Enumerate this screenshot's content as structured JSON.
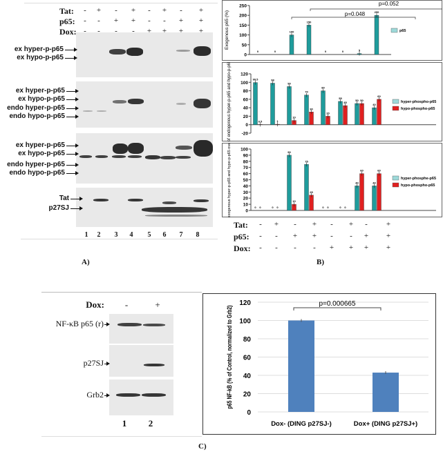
{
  "panel_a": {
    "label": "A)",
    "conditions": [
      {
        "name": "Tat:",
        "signs": [
          "-",
          "+",
          "-",
          "+",
          "-",
          "+",
          "-",
          "+"
        ]
      },
      {
        "name": "p65:",
        "signs": [
          "-",
          "-",
          "+",
          "+",
          "-",
          "-",
          "+",
          "+"
        ]
      },
      {
        "name": "Dox:",
        "signs": [
          "-",
          "-",
          "-",
          "-",
          "+",
          "+",
          "+",
          "+"
        ]
      }
    ],
    "blot1_labels": [
      "ex hyper-p-p65",
      "ex hypo-p-p65"
    ],
    "blot2_labels": [
      "ex hyper-p-p65",
      "ex hypo-p-p65",
      "endo hyper-p-p65",
      "endo hypo-p-p65"
    ],
    "blot3_labels": [
      "ex hyper-p-p65",
      "ex hypo-p-p65",
      "endo hyper-p-p65",
      "endo hypo-p-p65"
    ],
    "blot4_labels": [
      "Tat",
      "p27SJ"
    ],
    "lanes": [
      "1",
      "2",
      "3",
      "4",
      "5",
      "6",
      "7",
      "8"
    ]
  },
  "panel_b": {
    "label": "B)",
    "conditions": [
      {
        "name": "Tat:",
        "signs": [
          "-",
          "+",
          "-",
          "+",
          "-",
          "+",
          "-",
          "+"
        ]
      },
      {
        "name": "p65:",
        "signs": [
          "-",
          "-",
          "+",
          "+",
          "-",
          "-",
          "+",
          "+"
        ]
      },
      {
        "name": "Dox:",
        "signs": [
          "-",
          "-",
          "-",
          "-",
          "+",
          "+",
          "+",
          "+"
        ]
      }
    ]
  },
  "panel_c": {
    "label": "C)",
    "dox_label": "Dox:",
    "dox_signs": [
      "-",
      "+"
    ],
    "blot_labels": [
      "NF-κB p65 (r)",
      "p27SJ",
      "Grb2"
    ],
    "lanes": [
      "1",
      "2"
    ]
  },
  "colors": {
    "teal": "#1f9c9c",
    "red": "#e02020",
    "blue": "#4f81bd"
  },
  "chart_data": [
    {
      "type": "bar",
      "ylabel": "Exogenous p65 (%)",
      "ylim": [
        0,
        250
      ],
      "yticks": [
        "0",
        "50",
        "100",
        "150",
        "200",
        "250"
      ],
      "series": [
        {
          "name": "p65",
          "values": [
            0,
            0,
            100,
            150,
            0,
            0,
            5,
            200
          ],
          "data_labels": [
            "0",
            "0",
            "100",
            "150",
            "0",
            "0",
            "5",
            "200"
          ]
        }
      ],
      "annotations": [
        "p=0.052",
        "p=0.048"
      ],
      "legend": "right",
      "grid": false
    },
    {
      "type": "bar",
      "ylabel": "% of endogenous hyper-p-p65 and hypo-p-p65",
      "ylim": [
        -20,
        120
      ],
      "yticks": [
        "-20",
        "0",
        "20",
        "40",
        "60",
        "80",
        "100",
        "120"
      ],
      "series": [
        {
          "name": "hyper-phospho-p65",
          "values": [
            99.5,
            98,
            90,
            70,
            80,
            55,
            50,
            40
          ],
          "data_labels": [
            "99.5",
            "98",
            "90",
            "70",
            "80",
            "55",
            "50",
            "40"
          ]
        },
        {
          "name": "hypo-phospho-p65",
          "values": [
            0.5,
            1,
            10,
            30,
            20,
            45,
            50,
            60
          ],
          "data_labels": [
            "0.5",
            "1",
            "10",
            "30",
            "20",
            "45",
            "50",
            "60"
          ]
        }
      ],
      "legend": "right",
      "grid": false
    },
    {
      "type": "bar",
      "ylabel": "% of exogenous hyper-p-p65 and hypo-p-p65 over total",
      "ylim": [
        0,
        100
      ],
      "yticks": [
        "0",
        "10",
        "20",
        "30",
        "40",
        "50",
        "60",
        "70",
        "80",
        "90",
        "100"
      ],
      "series": [
        {
          "name": "hyper-phosphe-p65",
          "values": [
            0,
            0,
            90,
            75,
            0,
            0,
            40,
            40
          ],
          "data_labels": [
            "0",
            "0",
            "90",
            "75",
            "0",
            "0",
            "40",
            "40"
          ]
        },
        {
          "name": "hypo-phospho-p65",
          "values": [
            0,
            0,
            10,
            25,
            0,
            0,
            60,
            60
          ],
          "data_labels": [
            "0",
            "0",
            "10",
            "25",
            "0",
            "0",
            "60",
            "60"
          ]
        }
      ],
      "legend": "right",
      "grid": false
    },
    {
      "type": "bar",
      "ylabel": "p65 NF-kB (% of Control, normalized to Grb2)",
      "ylim": [
        0,
        120
      ],
      "yticks": [
        "0",
        "20",
        "40",
        "60",
        "80",
        "100",
        "120"
      ],
      "categories": [
        "Dox- (DING p27SJ-)",
        "Dox+ (DING p27SJ+)"
      ],
      "values": [
        100,
        43
      ],
      "annotations": [
        "p=0.000665"
      ],
      "grid": true
    }
  ]
}
